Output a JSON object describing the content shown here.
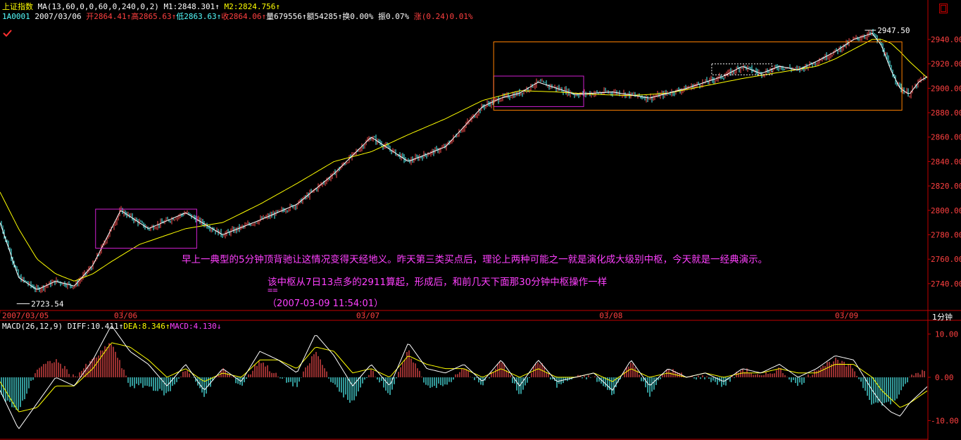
{
  "header": {
    "index_name": "上证指数",
    "ma_label": "MA(13,60,0,0,60,0,240,0,2)",
    "m1_label": "M1:",
    "m1_value": "2848.301",
    "m2_label": "M2:",
    "m2_value": "2824.756",
    "code": "1A0001",
    "date": "2007/03/06",
    "open_label": "开",
    "open_value": "2864.41",
    "high_label": "高",
    "high_value": "2865.63",
    "low_label": "低",
    "low_value": "2863.63",
    "close_label": "收",
    "close_value": "2864.06",
    "volume_label": "量",
    "volume_value": "679556",
    "amount_label": "额",
    "amount_value": "54285",
    "turnover_label": "换",
    "turnover_value": "0.00%",
    "amplitude_label": "振",
    "amplitude_value": "0.07%",
    "change_label": "涨",
    "change_value": "(0.24)0.01%"
  },
  "macd_header": {
    "label": "MACD(26,12,9)",
    "diff_label": "DIFF:",
    "diff_value": "10.411",
    "dea_label": "DEA:",
    "dea_value": "8.346",
    "macd_label": "MACD:",
    "macd_value": "4.130"
  },
  "period_label": "1分钟",
  "annotations": {
    "line1": "早上一典型的5分钟顶背驰让这情况变得天经地义。昨天第三类买点后，理论上两种可能之一就是演化成大级别中枢，今天就是一经典演示。",
    "line2": "该中枢从7日13点多的2911算起，形成后，和前几天下面那30分钟中枢操作一样",
    "line3": "==",
    "line4": "（2007-03-09 11:54:01）"
  },
  "colors": {
    "up": "#ff5050",
    "down": "#54fcfc",
    "ma_fast": "#ffffff",
    "ma_slow": "#ffff00",
    "axis": "#c00000",
    "box_magenta": "#d020d0",
    "box_orange": "#ff8000",
    "label_red": "#ff4040"
  },
  "chart_data": {
    "type": "line",
    "title": "上证指数",
    "xlabel": "",
    "ylabel": "",
    "ylim": [
      2718,
      2955
    ],
    "y_ticks": [
      "2940.00",
      "2920.00",
      "2900.00",
      "2880.00",
      "2860.00",
      "2840.00",
      "2820.00",
      "2800.00",
      "2780.00",
      "2760.00",
      "2740.00"
    ],
    "x_tick_labels": [
      "2007/03/05",
      "03/06",
      "03/07",
      "03/08",
      "03/09"
    ],
    "price_annotations": [
      {
        "label": "2723.54",
        "value": 2723.54
      },
      {
        "label": "2947.50",
        "value": 2947.5
      }
    ],
    "series": [
      {
        "name": "M1",
        "x_pct": [
          0,
          2,
          4,
          6,
          8,
          10,
          13,
          16,
          20,
          24,
          28,
          32,
          36,
          40,
          44,
          48,
          52,
          54,
          56,
          58,
          62,
          66,
          70,
          74,
          76,
          78,
          80,
          82,
          84,
          86,
          88,
          90,
          92,
          94,
          95,
          96,
          97,
          98,
          99,
          100
        ],
        "values": [
          2790,
          2745,
          2735,
          2742,
          2738,
          2755,
          2800,
          2785,
          2798,
          2780,
          2792,
          2805,
          2830,
          2860,
          2840,
          2852,
          2885,
          2892,
          2896,
          2905,
          2895,
          2897,
          2892,
          2900,
          2905,
          2910,
          2918,
          2912,
          2918,
          2915,
          2922,
          2930,
          2940,
          2945,
          2935,
          2915,
          2900,
          2895,
          2905,
          2910
        ]
      },
      {
        "name": "M2",
        "x_pct": [
          0,
          2,
          4,
          6,
          8,
          10,
          12,
          15,
          20,
          24,
          28,
          32,
          36,
          40,
          44,
          48,
          52,
          56,
          60,
          64,
          68,
          72,
          76,
          80,
          84,
          88,
          90,
          92,
          94,
          95,
          96,
          97,
          98,
          100
        ],
        "values": [
          2815,
          2785,
          2760,
          2748,
          2742,
          2748,
          2758,
          2772,
          2785,
          2790,
          2805,
          2822,
          2840,
          2848,
          2862,
          2875,
          2890,
          2898,
          2897,
          2895,
          2894,
          2896,
          2902,
          2908,
          2913,
          2918,
          2924,
          2932,
          2940,
          2940,
          2937,
          2930,
          2922,
          2908
        ]
      }
    ],
    "boxes": [
      {
        "x_pct": [
          10.3,
          21.2
        ],
        "y": [
          2769,
          2801
        ]
      },
      {
        "x_pct": [
          53.2,
          62.9
        ],
        "y": [
          2885,
          2910
        ]
      },
      {
        "x_pct": [
          53.2,
          97.2
        ],
        "y": [
          2882,
          2938
        ]
      }
    ],
    "macd": {
      "ylim": [
        -14,
        13
      ],
      "y_ticks": [
        "10.00",
        "0.00",
        "-10.00"
      ],
      "diff_x_pct": [
        0,
        2,
        4,
        6,
        8,
        10,
        12,
        14,
        16,
        18,
        20,
        22,
        24,
        26,
        28,
        30,
        32,
        34,
        36,
        38,
        40,
        42,
        44,
        46,
        48,
        50,
        52,
        54,
        56,
        58,
        60,
        62,
        64,
        66,
        68,
        70,
        72,
        74,
        76,
        78,
        80,
        82,
        84,
        86,
        88,
        90,
        92,
        94,
        95,
        96,
        97,
        98,
        100
      ],
      "diff": [
        -3,
        -12,
        -6,
        0,
        -2,
        4,
        12,
        6,
        3,
        -2,
        3,
        -3,
        2,
        -1,
        6,
        4,
        1,
        10,
        5,
        -2,
        3,
        -2,
        8,
        2,
        1,
        3,
        -1,
        4,
        -2,
        4,
        -1,
        0,
        1,
        -3,
        4,
        -2,
        2,
        0,
        1,
        -1,
        2,
        1,
        3,
        0,
        2,
        5,
        4,
        -3,
        -6,
        -8,
        -9,
        -6,
        -2
      ],
      "dea": [
        -1,
        -8,
        -7,
        -2,
        -2,
        2,
        8,
        7,
        4,
        0,
        2,
        -1,
        1,
        0,
        4,
        4,
        2,
        7,
        6,
        1,
        2,
        0,
        5,
        3,
        2,
        2,
        0,
        2,
        0,
        2,
        0,
        0,
        1,
        -1,
        2,
        0,
        1,
        0,
        1,
        0,
        1,
        1,
        2,
        1,
        1,
        3,
        3,
        0,
        -3,
        -5,
        -7,
        -6,
        -3
      ]
    }
  }
}
